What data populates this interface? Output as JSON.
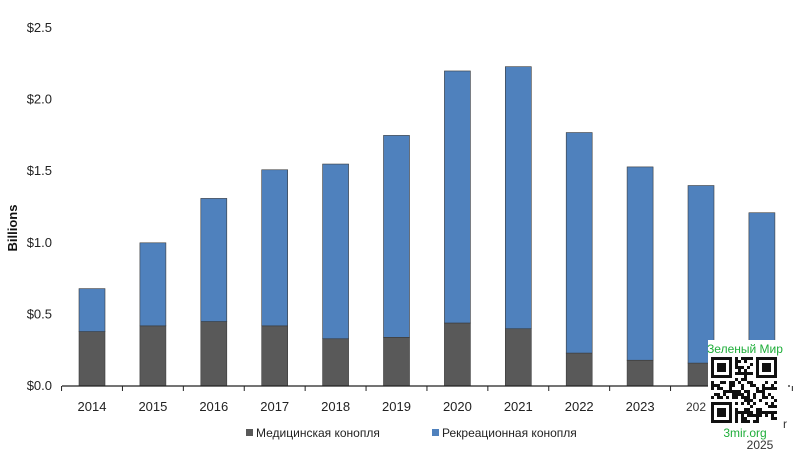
{
  "chart_data": {
    "type": "bar",
    "stacked": true,
    "categories": [
      "2014",
      "2015",
      "2016",
      "2017",
      "2018",
      "2019",
      "2020",
      "2021",
      "2022",
      "2023",
      "2024",
      "2025"
    ],
    "series": [
      {
        "name": "Медицинская конопля",
        "color": "#595959",
        "values": [
          0.38,
          0.42,
          0.45,
          0.42,
          0.33,
          0.34,
          0.44,
          0.4,
          0.23,
          0.18,
          0.16,
          0.15
        ]
      },
      {
        "name": "Рекреационная конопля",
        "color": "#4f81bd",
        "values": [
          0.3,
          0.58,
          0.86,
          1.09,
          1.22,
          1.41,
          1.76,
          1.83,
          1.54,
          1.35,
          1.24,
          1.06
        ]
      }
    ],
    "ylabel": "Billions",
    "ylim": [
      0,
      2.5
    ],
    "yticks": [
      "$0.0",
      "$0.5",
      "$1.0",
      "$1.5",
      "$2.0",
      "$2.5"
    ],
    "ytick_values": [
      0,
      0.5,
      1.0,
      1.5,
      2.0,
      2.5
    ],
    "grid": false,
    "legend_position": "bottom"
  },
  "watermark": {
    "title": "Зеленый Мир",
    "url": "3mir.org",
    "title_color": "#1fae3a"
  },
  "partial_labels": {
    "tick_2024_visible": "202",
    "year_2025_lower": "2025",
    "right_fragment": "r"
  }
}
